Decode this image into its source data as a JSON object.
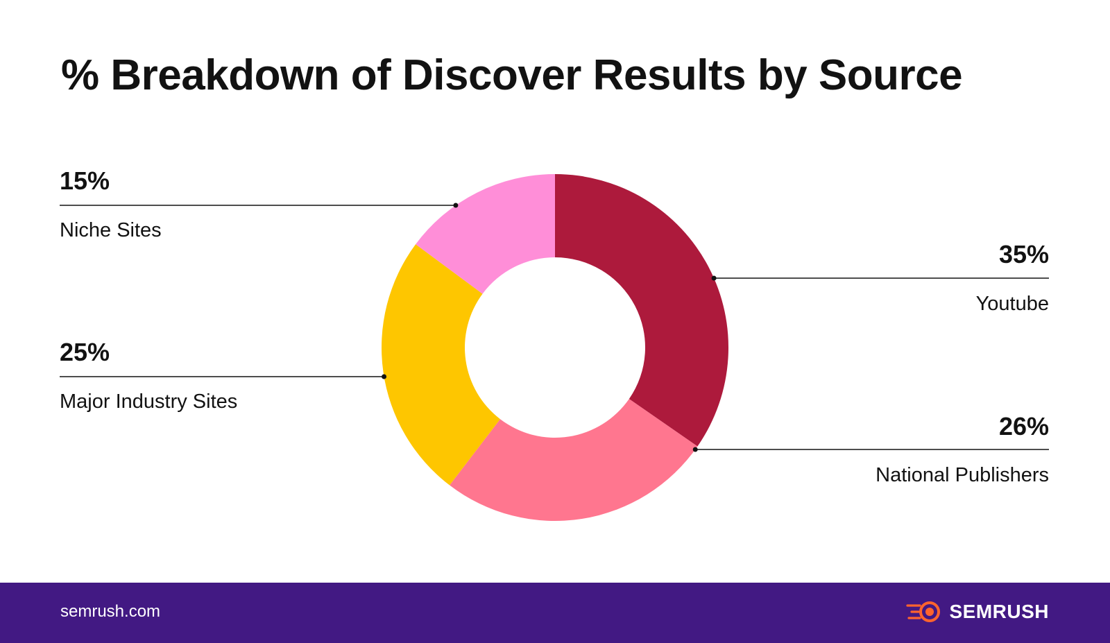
{
  "title": "% Breakdown of Discover Results by Source",
  "chart_data": {
    "type": "pie",
    "variant": "donut",
    "title": "% Breakdown of Discover Results by Source",
    "slices": [
      {
        "label": "Youtube",
        "value": 35,
        "value_label": "35%",
        "color": "#AD1A3C",
        "label_side": "right"
      },
      {
        "label": "National Publishers",
        "value": 26,
        "value_label": "26%",
        "color": "#FF768F",
        "label_side": "right"
      },
      {
        "label": "Major Industry Sites",
        "value": 25,
        "value_label": "25%",
        "color": "#FEC600",
        "label_side": "left"
      },
      {
        "label": "Niche Sites",
        "value": 15,
        "value_label": "15%",
        "color": "#FF8ED8",
        "label_side": "left"
      }
    ],
    "legend": "none",
    "start_angle": "top",
    "direction": "clockwise"
  },
  "footer": {
    "domain": "semrush.com",
    "brand": "SEMRUSH",
    "background": "#421983",
    "brand_accent": "#FF642D"
  }
}
